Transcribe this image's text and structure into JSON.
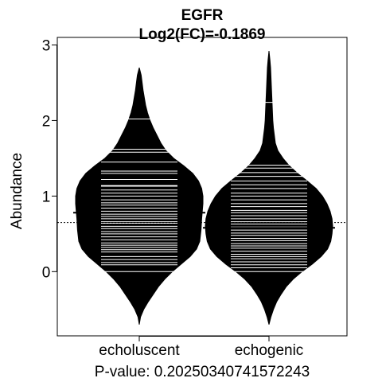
{
  "chart_data": {
    "type": "beanplot",
    "title": "EGFR",
    "subtitle": "Log2(FC)=-0.1869",
    "ylabel": "Abundance",
    "xlabel": "P-value: 0.20250340741572243",
    "categories": [
      "echoluscent",
      "echogenic"
    ],
    "yticks": [
      0,
      1,
      2,
      3
    ],
    "ylim": [
      -0.85,
      3.1
    ],
    "overall_mean": 0.65,
    "groups": [
      {
        "name": "echoluscent",
        "mean": 0.78,
        "density": [
          [
            -0.7,
            0
          ],
          [
            -0.6,
            0.02
          ],
          [
            -0.5,
            0.07
          ],
          [
            -0.4,
            0.14
          ],
          [
            -0.3,
            0.22
          ],
          [
            -0.2,
            0.3
          ],
          [
            -0.1,
            0.4
          ],
          [
            0,
            0.52
          ],
          [
            0.1,
            0.66
          ],
          [
            0.2,
            0.8
          ],
          [
            0.3,
            0.9
          ],
          [
            0.4,
            0.95
          ],
          [
            0.55,
            0.97
          ],
          [
            0.7,
            0.98
          ],
          [
            0.8,
            0.99
          ],
          [
            0.9,
            1.0
          ],
          [
            1.0,
            1.0
          ],
          [
            1.1,
            0.98
          ],
          [
            1.2,
            0.93
          ],
          [
            1.3,
            0.84
          ],
          [
            1.4,
            0.7
          ],
          [
            1.5,
            0.54
          ],
          [
            1.6,
            0.42
          ],
          [
            1.7,
            0.34
          ],
          [
            1.8,
            0.28
          ],
          [
            1.9,
            0.22
          ],
          [
            2.0,
            0.17
          ],
          [
            2.1,
            0.13
          ],
          [
            2.2,
            0.1
          ],
          [
            2.3,
            0.08
          ],
          [
            2.4,
            0.06
          ],
          [
            2.5,
            0.045
          ],
          [
            2.6,
            0.03
          ],
          [
            2.7,
            0
          ]
        ],
        "observations": [
          0,
          0.09,
          0.12,
          0.16,
          0.2,
          0.26,
          0.29,
          0.32,
          0.35,
          0.38,
          0.42,
          0.46,
          0.5,
          0.53,
          0.57,
          0.6,
          0.64,
          0.66,
          0.7,
          0.73,
          0.76,
          0.8,
          0.84,
          0.88,
          0.91,
          0.95,
          1.0,
          1.04,
          1.08,
          1.13,
          1.14,
          1.22,
          1.3,
          1.33,
          1.45,
          1.58,
          1.62,
          2.02
        ]
      },
      {
        "name": "echogenic",
        "mean": 0.58,
        "density": [
          [
            -0.7,
            0
          ],
          [
            -0.6,
            0.03
          ],
          [
            -0.5,
            0.07
          ],
          [
            -0.4,
            0.12
          ],
          [
            -0.3,
            0.19
          ],
          [
            -0.2,
            0.27
          ],
          [
            -0.1,
            0.38
          ],
          [
            0,
            0.52
          ],
          [
            0.1,
            0.68
          ],
          [
            0.2,
            0.82
          ],
          [
            0.3,
            0.92
          ],
          [
            0.4,
            0.97
          ],
          [
            0.5,
            0.99
          ],
          [
            0.6,
            1.0
          ],
          [
            0.7,
            0.99
          ],
          [
            0.8,
            0.96
          ],
          [
            0.9,
            0.91
          ],
          [
            1.0,
            0.84
          ],
          [
            1.1,
            0.74
          ],
          [
            1.2,
            0.6
          ],
          [
            1.3,
            0.45
          ],
          [
            1.4,
            0.32
          ],
          [
            1.5,
            0.22
          ],
          [
            1.6,
            0.14
          ],
          [
            1.7,
            0.1
          ],
          [
            1.8,
            0.085
          ],
          [
            1.9,
            0.07
          ],
          [
            2.0,
            0.06
          ],
          [
            2.1,
            0.055
          ],
          [
            2.2,
            0.05
          ],
          [
            2.3,
            0.045
          ],
          [
            2.4,
            0.04
          ],
          [
            2.5,
            0.035
          ],
          [
            2.6,
            0.03
          ],
          [
            2.7,
            0.025
          ],
          [
            2.8,
            0.015
          ],
          [
            2.92,
            0
          ]
        ],
        "observations": [
          0,
          0.05,
          0.09,
          0.13,
          0.17,
          0.2,
          0.23,
          0.27,
          0.31,
          0.34,
          0.37,
          0.41,
          0.44,
          0.48,
          0.51,
          0.55,
          0.59,
          0.63,
          0.66,
          0.7,
          0.74,
          0.78,
          0.81,
          0.86,
          0.9,
          0.95,
          1.0,
          1.04,
          1.1,
          1.15,
          1.2,
          1.26,
          1.31,
          1.37,
          1.41,
          2.24
        ]
      }
    ]
  }
}
